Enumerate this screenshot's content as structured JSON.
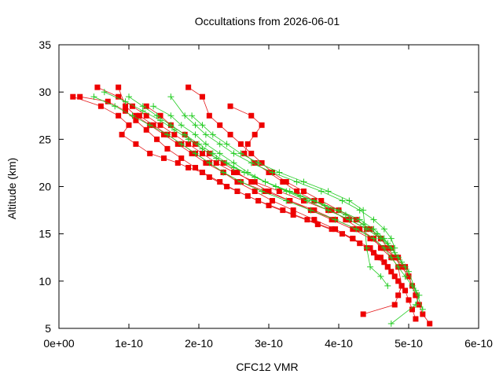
{
  "chart_data": {
    "type": "line",
    "title": "Occultations from 2026-06-01",
    "xlabel": "CFC12 VMR",
    "ylabel": "Altitude (km)",
    "xlim": [
      0,
      6e-10
    ],
    "ylim": [
      5,
      35
    ],
    "x_ticks": [
      {
        "value": 0,
        "label": "0e+00"
      },
      {
        "value": 1e-10,
        "label": "1e-10"
      },
      {
        "value": 2e-10,
        "label": "2e-10"
      },
      {
        "value": 3e-10,
        "label": "3e-10"
      },
      {
        "value": 4e-10,
        "label": "4e-10"
      },
      {
        "value": 5e-10,
        "label": "5e-10"
      },
      {
        "value": 6e-10,
        "label": "6e-10"
      }
    ],
    "y_ticks": [
      {
        "value": 5,
        "label": "5"
      },
      {
        "value": 10,
        "label": "10"
      },
      {
        "value": 15,
        "label": "15"
      },
      {
        "value": 20,
        "label": "20"
      },
      {
        "value": 25,
        "label": "25"
      },
      {
        "value": 30,
        "label": "30"
      },
      {
        "value": 35,
        "label": "35"
      }
    ],
    "grid": false,
    "legend": "none",
    "colors": {
      "red": "#e41a1c",
      "red_fill": "#ee0000",
      "green": "#22cc22"
    },
    "series": [
      {
        "color": "red",
        "marker": "square",
        "x": [
          2e-11,
          6e-11,
          8.5e-11,
          1e-10,
          9e-11,
          1.1e-10,
          1.3e-10,
          1.5e-10,
          1.7e-10,
          1.85e-10,
          2.05e-10,
          2.3e-10,
          2.55e-10,
          2.85e-10,
          3.2e-10,
          3.55e-10,
          3.9e-10,
          4.2e-10,
          4.45e-10,
          4.6e-10,
          4.7e-10,
          4.8e-10,
          4.9e-10,
          4.85e-10
        ],
        "y": [
          29.5,
          28.5,
          27.5,
          26.5,
          25.5,
          24.5,
          23.5,
          23.0,
          22.5,
          22.0,
          21.5,
          20.5,
          19.5,
          18.5,
          17.5,
          16.5,
          15.5,
          14.5,
          13.5,
          12.5,
          11.5,
          10.5,
          9.5,
          8.5
        ]
      },
      {
        "color": "red",
        "marker": "square",
        "x": [
          3e-11,
          7e-11,
          9.5e-11,
          1.1e-10,
          1.25e-10,
          1.4e-10,
          1.55e-10,
          1.75e-10,
          1.95e-10,
          2.15e-10,
          2.4e-10,
          2.7e-10,
          3e-10,
          3.35e-10,
          3.7e-10,
          4.05e-10,
          4.3e-10,
          4.5e-10,
          4.65e-10,
          4.75e-10,
          4.85e-10,
          4.95e-10,
          5e-10,
          5.05e-10,
          5.1e-10
        ],
        "y": [
          29.5,
          29.0,
          28.0,
          27.0,
          26.0,
          25.0,
          24.0,
          23.0,
          22.0,
          21.0,
          20.0,
          19.0,
          18.0,
          17.0,
          16.0,
          15.0,
          14.0,
          13.0,
          12.0,
          11.0,
          10.0,
          9.0,
          8.0,
          7.0,
          6.0
        ]
      },
      {
        "color": "red",
        "marker": "square",
        "x": [
          5.5e-11,
          8.5e-11,
          1.05e-10,
          1.25e-10,
          1.45e-10,
          1.65e-10,
          1.85e-10,
          2.05e-10,
          2.25e-10,
          2.5e-10,
          2.8e-10,
          3.15e-10,
          3.5e-10,
          3.85e-10,
          4.15e-10,
          4.4e-10,
          4.6e-10,
          4.7e-10,
          4.8e-10,
          4.9e-10,
          5e-10,
          5.05e-10,
          5.1e-10
        ],
        "y": [
          30.5,
          29.5,
          28.5,
          27.5,
          26.5,
          25.5,
          24.5,
          23.5,
          22.5,
          21.5,
          20.5,
          19.5,
          18.5,
          17.5,
          16.5,
          15.5,
          14.5,
          13.5,
          12.5,
          11.5,
          10.5,
          9.5,
          8.5
        ]
      },
      {
        "color": "red",
        "marker": "square",
        "x": [
          8.5e-11,
          9.5e-11,
          1.1e-10,
          1.3e-10,
          1.5e-10,
          1.7e-10,
          1.9e-10,
          2.1e-10,
          2.35e-10,
          2.6e-10,
          2.95e-10,
          3.3e-10,
          3.65e-10,
          3.95e-10,
          4.25e-10,
          4.5e-10,
          4.65e-10,
          4.8e-10,
          4.9e-10,
          5e-10,
          5.1e-10,
          5.2e-10,
          5.3e-10
        ],
        "y": [
          30.5,
          28.5,
          27.5,
          26.5,
          25.5,
          24.5,
          23.5,
          22.5,
          21.5,
          20.5,
          19.5,
          18.5,
          17.5,
          16.5,
          15.5,
          14.5,
          13.5,
          12.5,
          11.5,
          10.5,
          8.5,
          6.5,
          5.5
        ]
      },
      {
        "color": "red",
        "marker": "square",
        "x": [
          1.25e-10,
          1.45e-10,
          1.6e-10,
          1.8e-10,
          1.95e-10,
          2.15e-10,
          2.35e-10,
          2.55e-10,
          2.75e-10,
          3e-10,
          3.3e-10,
          3.6e-10,
          3.9e-10,
          4.2e-10,
          4.45e-10,
          4.65e-10,
          4.8e-10,
          4.95e-10,
          5e-10
        ],
        "y": [
          28.5,
          27.5,
          26.5,
          25.5,
          24.5,
          23.5,
          22.5,
          21.5,
          20.5,
          19.5,
          18.5,
          17.5,
          16.5,
          15.5,
          14.5,
          13.5,
          12.5,
          11.5,
          10.5
        ]
      },
      {
        "color": "red",
        "marker": "square",
        "x": [
          1.85e-10,
          2.05e-10,
          2.15e-10,
          2.3e-10,
          2.45e-10,
          2.6e-10,
          2.75e-10,
          2.9e-10,
          3.05e-10,
          3.25e-10,
          3.5e-10,
          3.75e-10,
          4e-10,
          4.25e-10,
          4.45e-10,
          4.6e-10,
          4.75e-10,
          4.85e-10,
          4.95e-10,
          5e-10,
          5.15e-10
        ],
        "y": [
          30.5,
          29.5,
          27.5,
          26.5,
          25.5,
          24.5,
          23.5,
          22.5,
          21.5,
          20.5,
          19.5,
          18.5,
          17.5,
          16.5,
          15.5,
          14.5,
          13.5,
          12.5,
          11.5,
          10.5,
          7.5
        ]
      },
      {
        "color": "red",
        "marker": "square",
        "x": [
          2.45e-10,
          2.75e-10,
          2.9e-10,
          2.8e-10,
          2.7e-10,
          2.65e-10,
          2.8e-10,
          3e-10,
          3.2e-10,
          3.4e-10,
          3.65e-10,
          3.9e-10,
          4.1e-10,
          4.3e-10,
          4.5e-10,
          4.6e-10,
          4.75e-10,
          4.85e-10,
          4.9e-10,
          4.8e-10,
          4.35e-10
        ],
        "y": [
          28.5,
          27.5,
          26.5,
          25.5,
          24.5,
          23.5,
          22.5,
          21.5,
          20.5,
          19.5,
          18.5,
          17.5,
          16.5,
          15.5,
          14.5,
          13.5,
          12.5,
          11.5,
          9.5,
          7.5,
          6.5
        ]
      },
      {
        "color": "red",
        "marker": "square",
        "x": [
          1.15e-10,
          1.35e-10,
          1.55e-10,
          1.75e-10,
          1.95e-10,
          2.15e-10,
          2.35e-10,
          2.55e-10,
          2.8e-10,
          3.05e-10,
          3.35e-10,
          3.65e-10,
          3.95e-10,
          4.2e-10,
          4.4e-10,
          4.55e-10,
          4.7e-10
        ],
        "y": [
          27.5,
          26.5,
          25.5,
          24.5,
          23.5,
          22.5,
          21.5,
          20.5,
          19.5,
          18.5,
          17.5,
          16.5,
          15.5,
          14.5,
          13.5,
          12.5,
          11.5
        ]
      },
      {
        "color": "green",
        "marker": "plus",
        "x": [
          5e-11,
          8e-11,
          1.05e-10,
          1.3e-10,
          1.55e-10,
          1.75e-10,
          1.95e-10,
          2.15e-10,
          2.35e-10,
          2.6e-10,
          2.9e-10,
          3.25e-10,
          3.6e-10,
          3.95e-10,
          4.25e-10,
          4.5e-10,
          4.65e-10,
          4.75e-10,
          4.85e-10,
          4.95e-10,
          5.05e-10,
          5.15e-10,
          5.1e-10,
          4.75e-10
        ],
        "y": [
          29.5,
          28.5,
          27.5,
          26.5,
          25.5,
          24.5,
          23.5,
          22.5,
          21.5,
          20.5,
          19.5,
          18.5,
          17.5,
          16.5,
          15.5,
          14.5,
          13.5,
          12.5,
          11.5,
          10.5,
          9.5,
          8.5,
          7.5,
          5.5
        ]
      },
      {
        "color": "green",
        "marker": "plus",
        "x": [
          6.5e-11,
          9.5e-11,
          1.2e-10,
          1.45e-10,
          1.65e-10,
          1.85e-10,
          2.05e-10,
          2.25e-10,
          2.5e-10,
          2.8e-10,
          3.1e-10,
          3.45e-10,
          3.8e-10,
          4.1e-10,
          4.35e-10,
          4.55e-10,
          4.7e-10,
          4.8e-10,
          4.9e-10,
          5e-10,
          5.1e-10,
          5.2e-10
        ],
        "y": [
          30.0,
          29.0,
          28.0,
          27.0,
          26.0,
          25.0,
          24.0,
          23.0,
          22.0,
          21.0,
          20.0,
          19.0,
          18.0,
          17.0,
          16.0,
          15.0,
          14.0,
          13.0,
          12.0,
          11.0,
          9.0,
          7.0
        ]
      },
      {
        "color": "green",
        "marker": "plus",
        "x": [
          1e-10,
          1.2e-10,
          1.4e-10,
          1.6e-10,
          1.8e-10,
          2e-10,
          2.2e-10,
          2.4e-10,
          2.65e-10,
          2.95e-10,
          3.3e-10,
          3.65e-10,
          4e-10,
          4.3e-10,
          4.5e-10,
          4.65e-10,
          4.75e-10,
          4.85e-10,
          4.95e-10
        ],
        "y": [
          29.5,
          28.5,
          27.5,
          26.5,
          25.5,
          24.5,
          23.5,
          22.5,
          21.5,
          20.5,
          19.5,
          18.5,
          17.5,
          16.5,
          15.5,
          14.5,
          13.5,
          12.5,
          11.5
        ]
      },
      {
        "color": "green",
        "marker": "plus",
        "x": [
          1.35e-10,
          1.6e-10,
          1.75e-10,
          1.95e-10,
          2.1e-10,
          2.3e-10,
          2.5e-10,
          2.7e-10,
          2.95e-10,
          3.25e-10,
          3.55e-10,
          3.85e-10,
          4.15e-10,
          4.4e-10,
          4.6e-10,
          4.75e-10,
          4.85e-10
        ],
        "y": [
          28.5,
          27.5,
          26.5,
          25.5,
          24.5,
          23.5,
          22.5,
          21.5,
          20.5,
          19.5,
          18.5,
          17.5,
          16.5,
          15.5,
          14.5,
          13.5,
          12.5
        ]
      },
      {
        "color": "green",
        "marker": "plus",
        "x": [
          1.6e-10,
          1.8e-10,
          1.95e-10,
          2.1e-10,
          2.3e-10,
          2.5e-10,
          2.75e-10,
          3.05e-10,
          3.4e-10,
          3.75e-10,
          4.05e-10,
          4.3e-10,
          4.5e-10,
          4.65e-10,
          4.75e-10,
          4.8e-10
        ],
        "y": [
          29.5,
          27.5,
          26.5,
          25.5,
          24.5,
          23.5,
          22.5,
          21.5,
          20.5,
          19.5,
          18.5,
          17.5,
          16.5,
          15.5,
          14.5,
          13.5
        ]
      },
      {
        "color": "green",
        "marker": "plus",
        "x": [
          1.9e-10,
          2.05e-10,
          2.2e-10,
          2.4e-10,
          2.6e-10,
          2.85e-10,
          3.15e-10,
          3.5e-10,
          3.85e-10,
          4.15e-10,
          4.35e-10,
          4.4e-10,
          4.45e-10,
          4.6e-10,
          4.7e-10
        ],
        "y": [
          27.5,
          26.5,
          25.5,
          24.5,
          23.5,
          22.5,
          21.5,
          20.5,
          19.5,
          18.5,
          17.5,
          13.5,
          11.5,
          10.5,
          9.5
        ]
      }
    ]
  }
}
